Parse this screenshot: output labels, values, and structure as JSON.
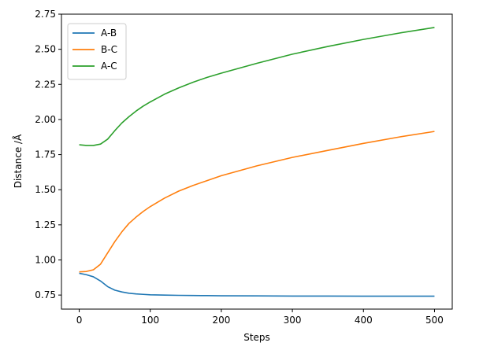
{
  "chart_data": {
    "type": "line",
    "title": "",
    "xlabel": "Steps",
    "ylabel": "Distance /Å",
    "xlim": [
      -25,
      525
    ],
    "ylim": [
      0.65,
      2.75
    ],
    "xticks": [
      0,
      100,
      200,
      300,
      400,
      500
    ],
    "xtick_labels": [
      "0",
      "100",
      "200",
      "300",
      "400",
      "500"
    ],
    "yticks": [
      0.75,
      1.0,
      1.25,
      1.5,
      1.75,
      2.0,
      2.25,
      2.5,
      2.75
    ],
    "ytick_labels": [
      "0.75",
      "1.00",
      "1.25",
      "1.50",
      "1.75",
      "2.00",
      "2.25",
      "2.50",
      "2.75"
    ],
    "grid": false,
    "legend": "top-left",
    "x": [
      0,
      10,
      20,
      30,
      40,
      50,
      60,
      70,
      80,
      90,
      100,
      120,
      140,
      160,
      180,
      200,
      250,
      300,
      350,
      400,
      450,
      500
    ],
    "series": [
      {
        "name": "A-B",
        "color": "#1f77b4",
        "values": [
          0.905,
          0.895,
          0.88,
          0.85,
          0.81,
          0.785,
          0.772,
          0.763,
          0.758,
          0.755,
          0.752,
          0.75,
          0.748,
          0.747,
          0.746,
          0.745,
          0.744,
          0.743,
          0.743,
          0.742,
          0.742,
          0.742
        ]
      },
      {
        "name": "B-C",
        "color": "#ff7f0e",
        "values": [
          0.915,
          0.918,
          0.93,
          0.97,
          1.05,
          1.13,
          1.2,
          1.26,
          1.305,
          1.345,
          1.38,
          1.44,
          1.49,
          1.53,
          1.565,
          1.6,
          1.67,
          1.73,
          1.78,
          1.83,
          1.875,
          1.915
        ]
      },
      {
        "name": "A-C",
        "color": "#2ca02c",
        "values": [
          1.82,
          1.815,
          1.815,
          1.825,
          1.86,
          1.92,
          1.975,
          2.02,
          2.06,
          2.095,
          2.125,
          2.18,
          2.225,
          2.265,
          2.3,
          2.33,
          2.4,
          2.465,
          2.52,
          2.57,
          2.615,
          2.655
        ]
      }
    ]
  }
}
